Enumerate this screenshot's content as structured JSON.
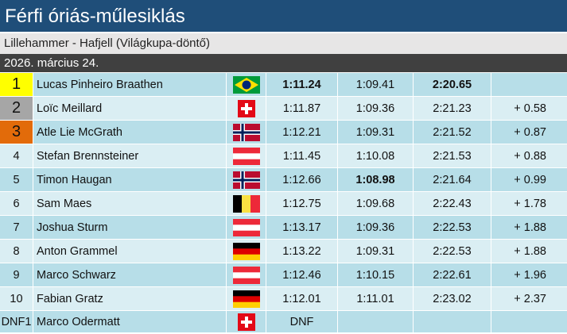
{
  "header": {
    "title": "Férfi óriás-műlesiklás",
    "subtitle": "Lillehammer - Hafjell (Világkupa-döntő)",
    "date": "2026. március 24."
  },
  "table": {
    "rows": [
      {
        "rank": "1",
        "name": "Lucas Pinheiro Braathen",
        "run1": "1:11.24",
        "run2": "1:09.41",
        "total": "2:20.65"
      },
      {
        "rank": "2",
        "name": "Loïc Meillard",
        "run1": "1:11.87",
        "run2": "1:09.36",
        "total": "2:21.23",
        "diff": "+ 0.58"
      },
      {
        "rank": "3",
        "name": "Atle Lie McGrath",
        "run1": "1:12.21",
        "run2": "1:09.31",
        "total": "2:21.52",
        "diff": "+ 0.87"
      },
      {
        "rank": "4",
        "name": "Stefan Brennsteiner",
        "run1": "1:11.45",
        "run2": "1:10.08",
        "total": "2:21.53",
        "diff": "+ 0.88"
      },
      {
        "rank": "5",
        "name": "Timon Haugan",
        "run1": "1:12.66",
        "run2": "1:08.98",
        "total": "2:21.64",
        "diff": "+ 0.99"
      },
      {
        "rank": "6",
        "name": "Sam Maes",
        "run1": "1:12.75",
        "run2": "1:09.68",
        "total": "2:22.43",
        "diff": "+ 1.78"
      },
      {
        "rank": "7",
        "name": "Joshua Sturm",
        "run1": "1:13.17",
        "run2": "1:09.36",
        "total": "2:22.53",
        "diff": "+ 1.88"
      },
      {
        "rank": "8",
        "name": "Anton Grammel",
        "run1": "1:13.22",
        "run2": "1:09.31",
        "total": "2:22.53",
        "diff": "+ 1.88"
      },
      {
        "rank": "9",
        "name": "Marco Schwarz",
        "run1": "1:12.46",
        "run2": "1:10.15",
        "total": "2:22.61",
        "diff": "+ 1.96"
      },
      {
        "rank": "10",
        "name": "Fabian Gratz",
        "run1": "1:12.01",
        "run2": "1:11.01",
        "total": "2:23.02",
        "diff": "+ 2.37"
      },
      {
        "rank": "DNF1",
        "name": "Marco Odermatt",
        "run1": "DNF"
      }
    ]
  }
}
